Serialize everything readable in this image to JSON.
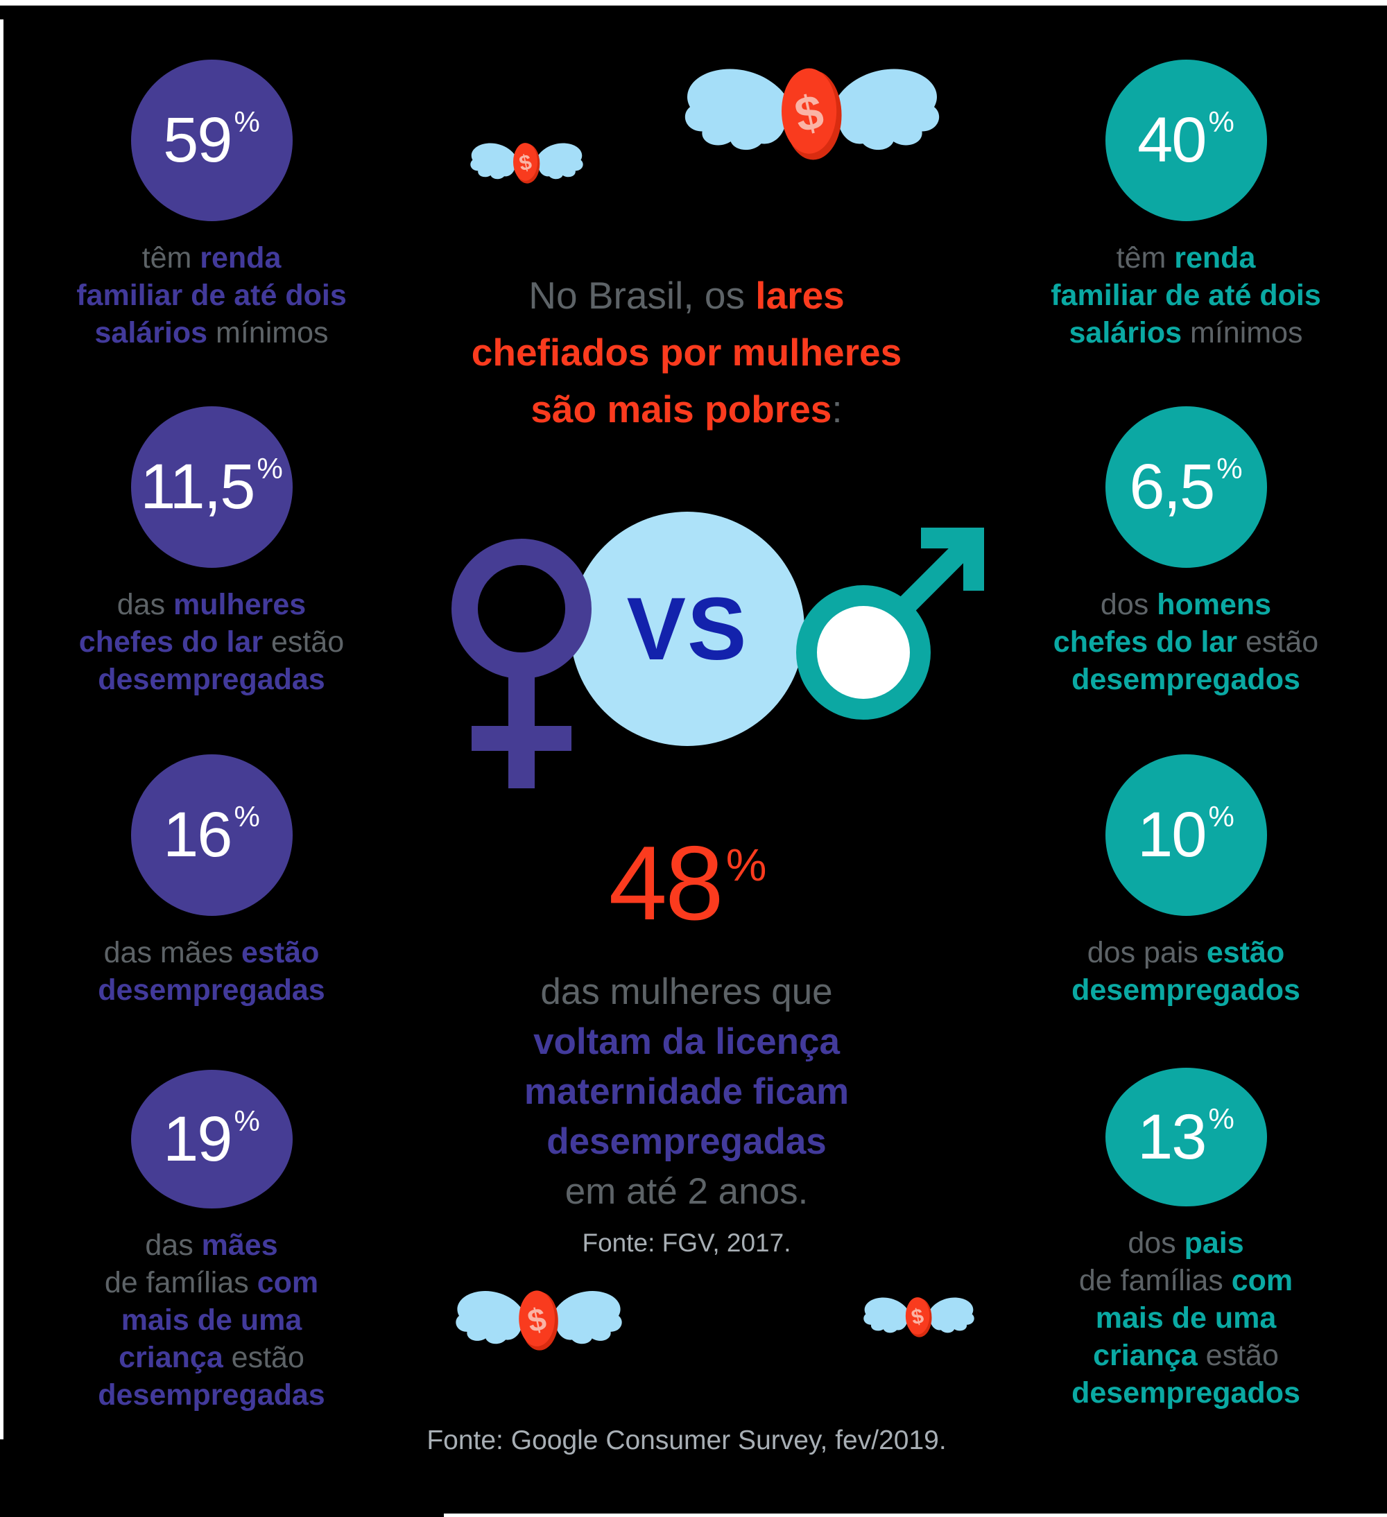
{
  "colors": {
    "purple": "#463D94",
    "purple_text": "#423A9B",
    "teal": "#0CA8A3",
    "teal_text": "#0AA9A3",
    "red": "#FB3B1E",
    "gray": "#5D6367",
    "lightgray": "#A8AFB5",
    "wing": "#A5DEF8",
    "vsblue": "#ADE2F9",
    "vstext": "#1322AC",
    "coin": "#F93B1E",
    "coinrim": "#D92C10",
    "coindollar": "#FAB4A6",
    "white": "#FFFFFF",
    "bg": "#000000"
  },
  "icons": {
    "dollar_sign": "$",
    "winged_coin": "winged-coin",
    "female_symbol": "female-gender-symbol",
    "male_symbol": "male-gender-symbol"
  },
  "title": {
    "lines": [
      [
        {
          "t": "No Brasil, os ",
          "b": 0
        },
        {
          "t": "lares",
          "b": 1
        }
      ],
      [
        {
          "t": "chefiados por mulheres",
          "b": 1
        }
      ],
      [
        {
          "t": "são mais pobres",
          "b": 1
        },
        {
          "t": ":",
          "b": 0
        }
      ]
    ]
  },
  "vs": {
    "label": "VS"
  },
  "left_stats": [
    {
      "value": "59",
      "pct": "%",
      "lines": [
        [
          {
            "t": "têm ",
            "b": 0
          },
          {
            "t": "renda",
            "b": 1
          }
        ],
        [
          {
            "t": "familiar de até dois",
            "b": 1
          }
        ],
        [
          {
            "t": "salários",
            "b": 1
          },
          {
            "t": " mínimos",
            "b": 0
          }
        ]
      ]
    },
    {
      "value": "11,5",
      "pct": "%",
      "lines": [
        [
          {
            "t": "das ",
            "b": 0
          },
          {
            "t": "mulheres",
            "b": 1
          }
        ],
        [
          {
            "t": "chefes do lar",
            "b": 1
          },
          {
            "t": " estão",
            "b": 0
          }
        ],
        [
          {
            "t": "desempregadas",
            "b": 1
          }
        ]
      ]
    },
    {
      "value": "16",
      "pct": "%",
      "lines": [
        [
          {
            "t": "das mães ",
            "b": 0
          },
          {
            "t": "estão",
            "b": 1
          }
        ],
        [
          {
            "t": "desempregadas",
            "b": 1
          }
        ]
      ]
    },
    {
      "value": "19",
      "pct": "%",
      "lines": [
        [
          {
            "t": "das ",
            "b": 0
          },
          {
            "t": "mães",
            "b": 1
          }
        ],
        [
          {
            "t": "de famílias ",
            "b": 0
          },
          {
            "t": "com",
            "b": 1
          }
        ],
        [
          {
            "t": "mais de uma",
            "b": 1
          }
        ],
        [
          {
            "t": "criança",
            "b": 1
          },
          {
            "t": " estão",
            "b": 0
          }
        ],
        [
          {
            "t": "desempregadas",
            "b": 1
          }
        ]
      ]
    }
  ],
  "right_stats": [
    {
      "value": "40",
      "pct": "%",
      "lines": [
        [
          {
            "t": "têm ",
            "b": 0
          },
          {
            "t": "renda",
            "b": 1
          }
        ],
        [
          {
            "t": "familiar de até dois",
            "b": 1
          }
        ],
        [
          {
            "t": "salários",
            "b": 1
          },
          {
            "t": " mínimos",
            "b": 0
          }
        ]
      ]
    },
    {
      "value": "6,5",
      "pct": "%",
      "lines": [
        [
          {
            "t": "dos ",
            "b": 0
          },
          {
            "t": "homens",
            "b": 1
          }
        ],
        [
          {
            "t": "chefes do lar",
            "b": 1
          },
          {
            "t": " estão",
            "b": 0
          }
        ],
        [
          {
            "t": "desempregados",
            "b": 1
          }
        ]
      ]
    },
    {
      "value": "10",
      "pct": "%",
      "lines": [
        [
          {
            "t": "dos pais ",
            "b": 0
          },
          {
            "t": "estão",
            "b": 1
          }
        ],
        [
          {
            "t": "desempregados",
            "b": 1
          }
        ]
      ]
    },
    {
      "value": "13",
      "pct": "%",
      "lines": [
        [
          {
            "t": "dos ",
            "b": 0
          },
          {
            "t": "pais",
            "b": 1
          }
        ],
        [
          {
            "t": "de famílias ",
            "b": 0
          },
          {
            "t": "com",
            "b": 1
          }
        ],
        [
          {
            "t": "mais de uma",
            "b": 1
          }
        ],
        [
          {
            "t": "criança",
            "b": 1
          },
          {
            "t": " estão",
            "b": 0
          }
        ],
        [
          {
            "t": "desempregados",
            "b": 1
          }
        ]
      ]
    }
  ],
  "center_stat": {
    "value": "48",
    "pct": "%",
    "lines": [
      [
        {
          "t": "das mulheres que",
          "b": 0
        }
      ],
      [
        {
          "t": "voltam da licença",
          "b": 1
        }
      ],
      [
        {
          "t": "maternidade ficam",
          "b": 1
        }
      ],
      [
        {
          "t": "desempregadas",
          "b": 1
        }
      ],
      [
        {
          "t": "em até 2 anos.",
          "b": 0
        }
      ]
    ]
  },
  "sources": {
    "fgv": "Fonte: FGV, 2017.",
    "google": "Fonte: Google Consumer Survey, fev/2019."
  }
}
